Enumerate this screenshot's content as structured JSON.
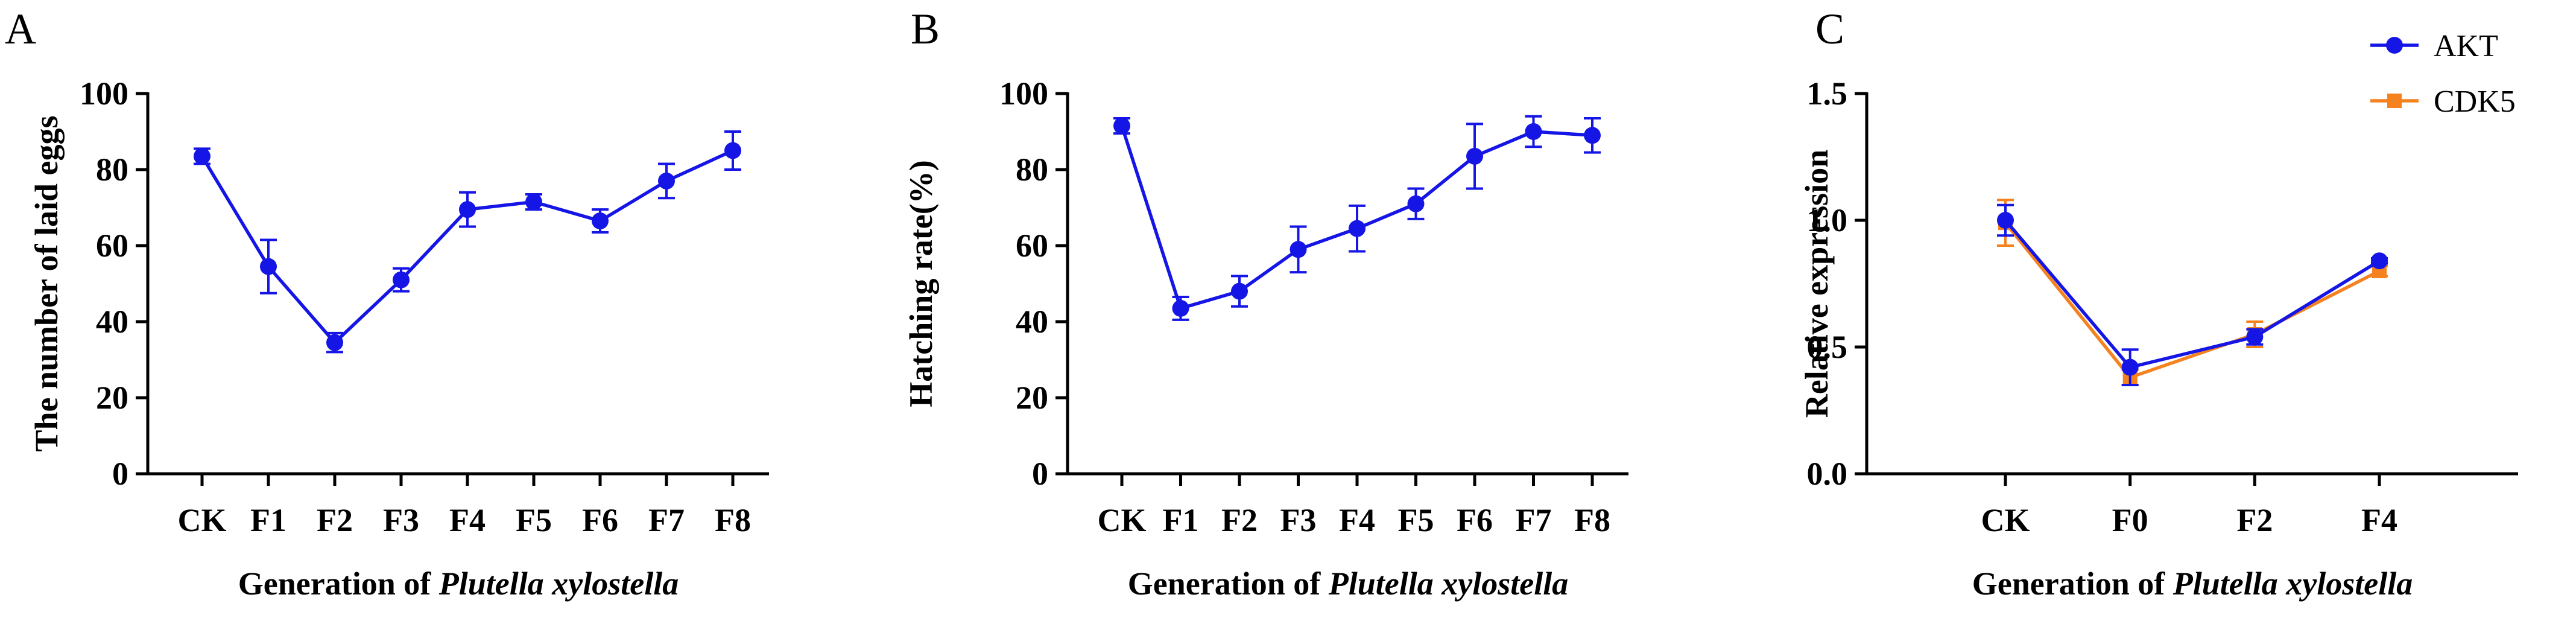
{
  "chart_data": [
    {
      "panel": "A",
      "type": "line",
      "ylabel": "The number of laid eggs",
      "xlabel_prefix": "Generation of ",
      "xlabel_italic": "Plutella xylostella",
      "categories": [
        "CK",
        "F1",
        "F2",
        "F3",
        "F4",
        "F5",
        "F6",
        "F7",
        "F8"
      ],
      "ylim": [
        0,
        100
      ],
      "yticks": [
        "0",
        "20",
        "40",
        "60",
        "80",
        "100"
      ],
      "series": [
        {
          "name": "Laid eggs",
          "color": "#1515e6",
          "marker": "circle",
          "values": [
            83.5,
            54.5,
            34.5,
            51,
            69.5,
            71.5,
            66.5,
            77,
            85
          ],
          "errors": [
            2,
            7,
            2.5,
            3,
            4.5,
            2,
            3,
            4.5,
            5
          ]
        }
      ]
    },
    {
      "panel": "B",
      "type": "line",
      "ylabel": "Hatching rate(%)",
      "xlabel_prefix": "Generation of ",
      "xlabel_italic": "Plutella xylostella",
      "categories": [
        "CK",
        "F1",
        "F2",
        "F3",
        "F4",
        "F5",
        "F6",
        "F7",
        "F8"
      ],
      "ylim": [
        0,
        100
      ],
      "yticks": [
        "0",
        "20",
        "40",
        "60",
        "80",
        "100"
      ],
      "series": [
        {
          "name": "Hatching rate",
          "color": "#1515e6",
          "marker": "circle",
          "values": [
            91.5,
            43.5,
            48,
            59,
            64.5,
            71,
            83.5,
            90,
            89
          ],
          "errors": [
            2,
            3,
            4,
            6,
            6,
            4,
            8.5,
            4,
            4.5
          ]
        }
      ]
    },
    {
      "panel": "C",
      "type": "line",
      "ylabel": "Relative expression",
      "xlabel_prefix": "Generation of ",
      "xlabel_italic": "Plutella xylostella",
      "categories": [
        "CK",
        "F0",
        "F2",
        "F4"
      ],
      "ylim": [
        0,
        1.5
      ],
      "yticks": [
        "0.0",
        "0.5",
        "1.0",
        "1.5"
      ],
      "legend_position": "top-right",
      "series": [
        {
          "name": "CDK5",
          "color": "#f5821f",
          "marker": "square",
          "values": [
            0.99,
            0.38,
            0.55,
            0.8
          ],
          "errors": [
            0.09,
            0.03,
            0.05,
            0.02
          ]
        },
        {
          "name": "AKT",
          "color": "#1515e6",
          "marker": "circle",
          "values": [
            1.0,
            0.42,
            0.54,
            0.84
          ],
          "errors": [
            0.06,
            0.07,
            0.03,
            0.01
          ]
        }
      ]
    }
  ]
}
